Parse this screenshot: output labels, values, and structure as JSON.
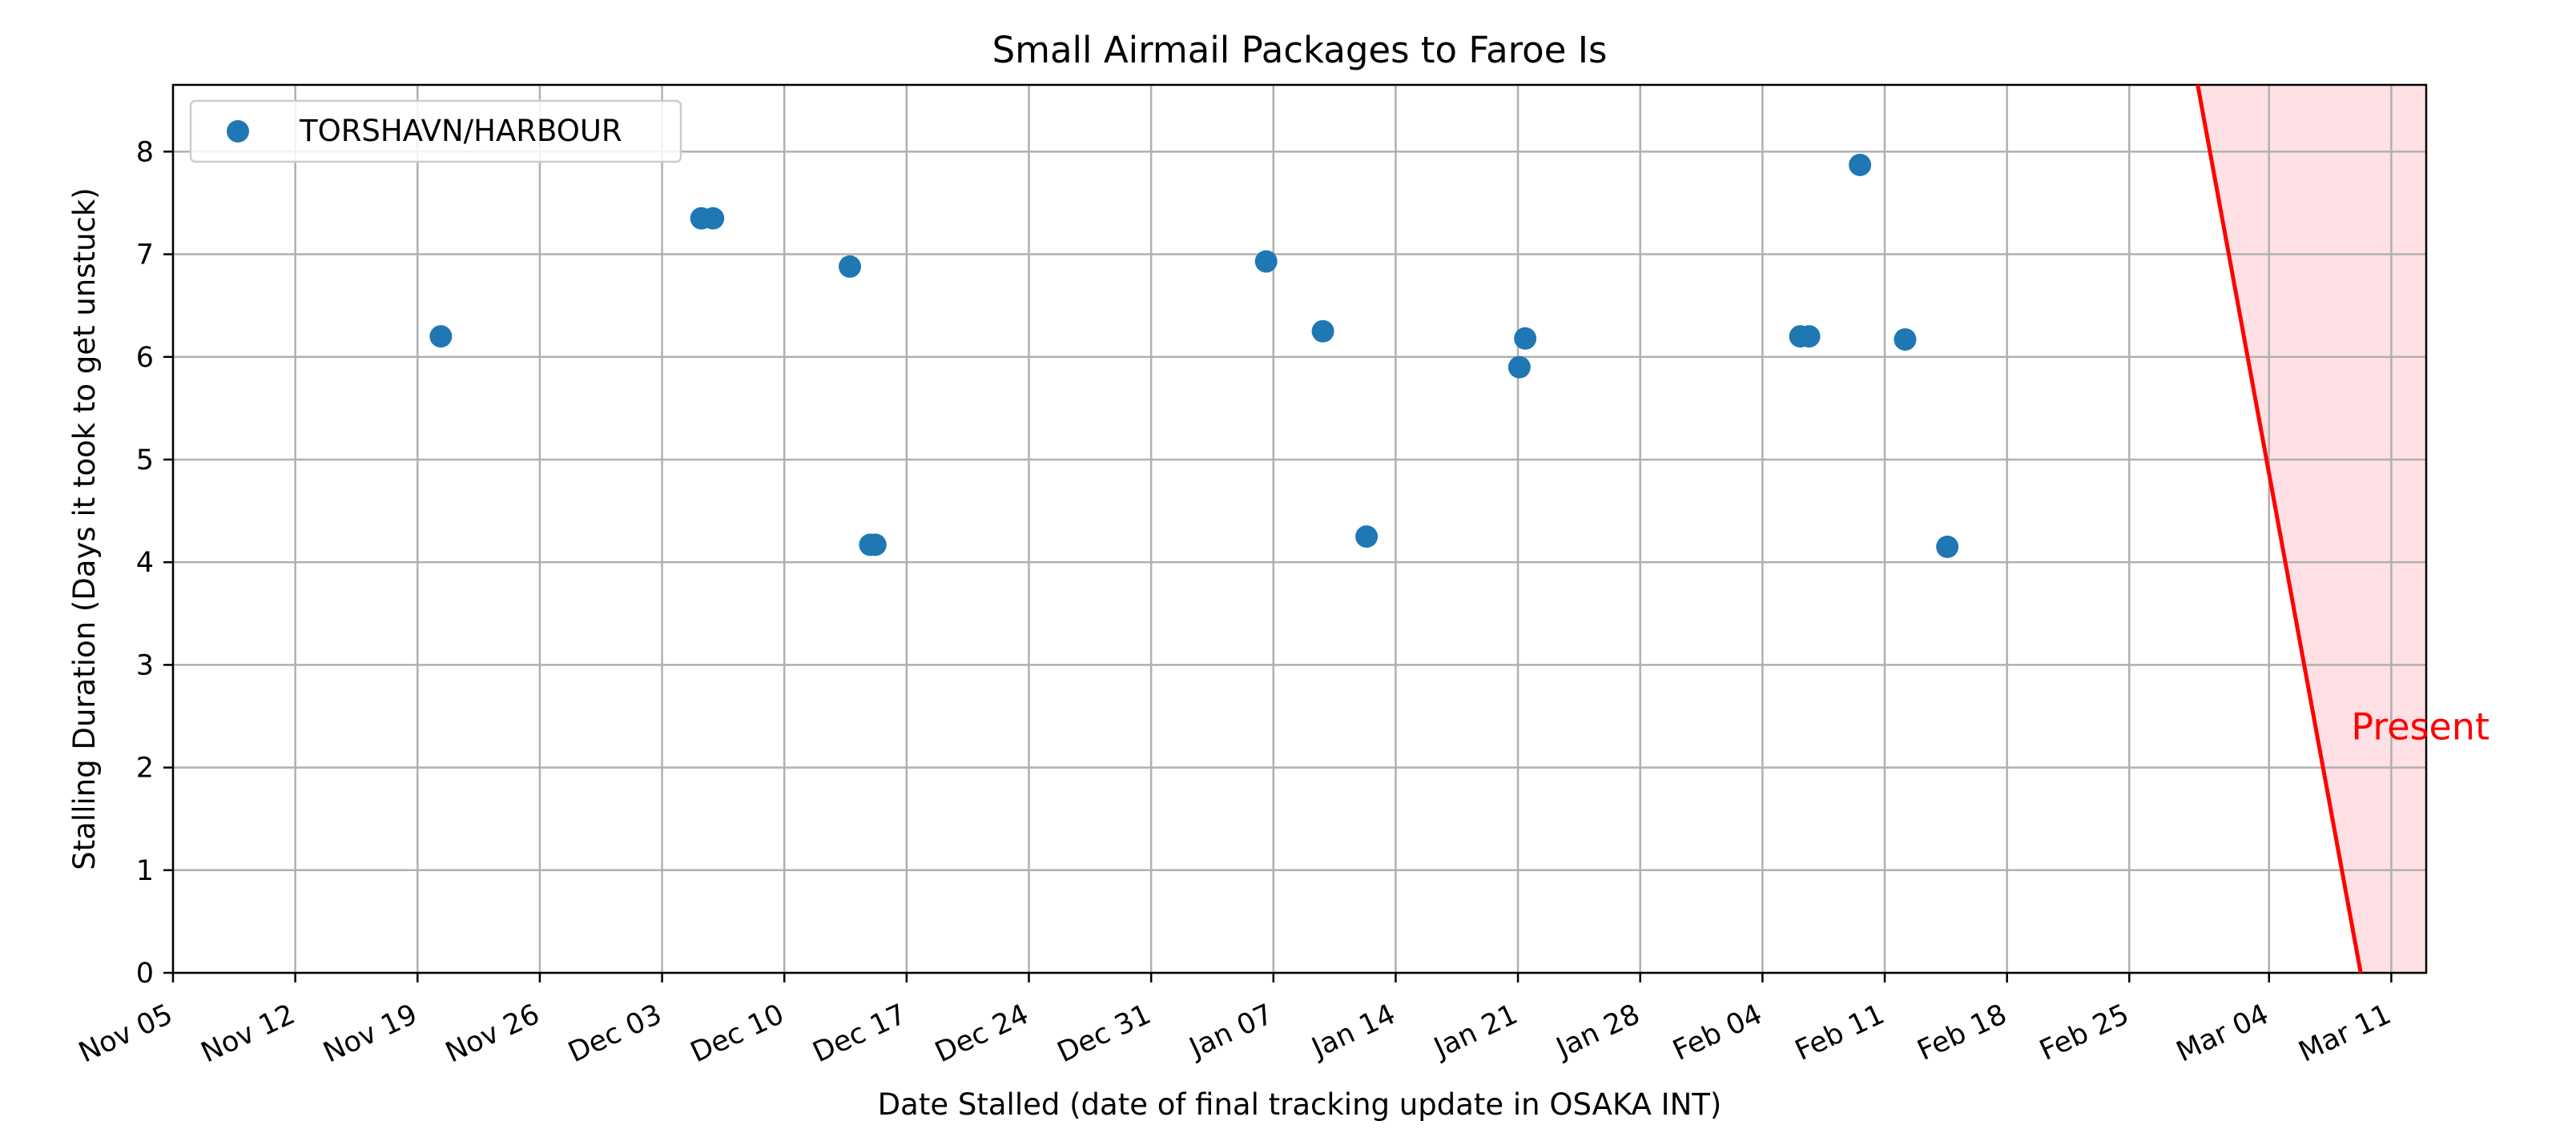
{
  "chart_data": {
    "type": "scatter",
    "title": "Small Airmail Packages to Faroe Is",
    "xlabel": "Date Stalled (date of final tracking update in OSAKA INT)",
    "ylabel": "Stalling Duration (Days it took to get unstuck)",
    "x_axis_type": "date",
    "xlim": [
      "2023-11-05",
      "2024-03-13"
    ],
    "ylim": [
      0,
      8.65
    ],
    "x_ticks": [
      "2023-11-05",
      "2023-11-12",
      "2023-11-19",
      "2023-11-26",
      "2023-12-03",
      "2023-12-10",
      "2023-12-17",
      "2023-12-24",
      "2023-12-31",
      "2024-01-07",
      "2024-01-14",
      "2024-01-21",
      "2024-01-28",
      "2024-02-04",
      "2024-02-11",
      "2024-02-18",
      "2024-02-25",
      "2024-03-04",
      "2024-03-11"
    ],
    "x_tick_labels": [
      "Nov 05",
      "Nov 12",
      "Nov 19",
      "Nov 26",
      "Dec 03",
      "Dec 10",
      "Dec 17",
      "Dec 24",
      "Dec 31",
      "Jan 07",
      "Jan 14",
      "Jan 21",
      "Jan 28",
      "Feb 04",
      "Feb 11",
      "Feb 18",
      "Feb 25",
      "Mar 04",
      "Mar 11"
    ],
    "y_ticks": [
      0,
      1,
      2,
      3,
      4,
      5,
      6,
      7,
      8
    ],
    "y_tick_labels": [
      "0",
      "1",
      "2",
      "3",
      "4",
      "5",
      "6",
      "7",
      "8"
    ],
    "grid": true,
    "legend_position": "top-left",
    "series": [
      {
        "name": "TORSHAVN/HARBOUR",
        "color": "#1f77b4",
        "points": [
          {
            "x": "2023-11-20 08:00",
            "y": 6.2
          },
          {
            "x": "2023-12-05 06:00",
            "y": 7.35
          },
          {
            "x": "2023-12-05 22:00",
            "y": 7.35
          },
          {
            "x": "2023-12-13 18:00",
            "y": 6.88
          },
          {
            "x": "2023-12-14 22:00",
            "y": 4.17
          },
          {
            "x": "2023-12-15 05:00",
            "y": 4.17
          },
          {
            "x": "2024-01-06 14:00",
            "y": 6.93
          },
          {
            "x": "2024-01-09 20:00",
            "y": 6.25
          },
          {
            "x": "2024-01-12 08:00",
            "y": 4.25
          },
          {
            "x": "2024-01-21 02:00",
            "y": 5.9
          },
          {
            "x": "2024-01-21 10:00",
            "y": 6.18
          },
          {
            "x": "2024-02-06 04:00",
            "y": 6.2
          },
          {
            "x": "2024-02-06 16:00",
            "y": 6.2
          },
          {
            "x": "2024-02-09 14:00",
            "y": 7.87
          },
          {
            "x": "2024-02-12 04:00",
            "y": 6.17
          },
          {
            "x": "2024-02-14 14:00",
            "y": 4.15
          }
        ]
      }
    ],
    "annotations": [
      {
        "type": "present-line",
        "label": "Present",
        "color": "#ff0000",
        "shade_color": "#ffe0e4",
        "y_top": 8.65,
        "y_bottom": 0,
        "x_top": "2024-02-28 22:00",
        "x_bottom": "2024-03-09 06:00",
        "label_y": 2.4
      }
    ]
  }
}
